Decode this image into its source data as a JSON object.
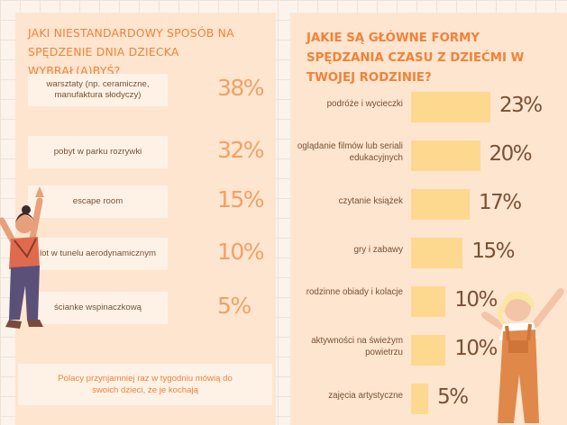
{
  "left": {
    "title": "JAKI NIESTANDARDOWY SPOSÓB NA SPĘDZENIE DNIA DZIECKA WYBRAŁ(A)BYŚ?",
    "note": "Polacy przynjamniej raz w tygodniu mówią do swoich dzieci, że je kochają"
  },
  "right": {
    "title": "JAKIE SĄ GŁÓWNE FORMY SPĘDZANIA CZASU Z DZIEĆMI W TWOJEJ RODZINIE?"
  },
  "colors": {
    "accent": "#f0823a",
    "bar": "#fdd88f",
    "panel": "#fde5cf",
    "text": "#7a5034",
    "pct_light": "#f3a064"
  },
  "chart_data": [
    {
      "type": "table",
      "title": "JAKI NIESTANDARDOWY SPOSÓB NA SPĘDZENIE DNIA DZIECKA WYBRAŁ(A)BYŚ?",
      "categories": [
        "warsztaty (np. ceramiczne, manufaktura słodyczy)",
        "pobyt w parku rozrywki",
        "escape room",
        "lot w tunelu aerodynamicznym",
        "ścianke wspinaczkową"
      ],
      "values": [
        38,
        32,
        15,
        10,
        5
      ],
      "labels": [
        "38%",
        "32%",
        "15%",
        "10%",
        "5%"
      ]
    },
    {
      "type": "bar",
      "orientation": "horizontal",
      "title": "JAKIE SĄ GŁÓWNE FORMY SPĘDZANIA CZASU Z DZIEĆMI W TWOJEJ RODZINIE?",
      "categories": [
        "podróże i wycieczki",
        "oglądanie filmów lub seriali edukacyjnych",
        "czytanie książek",
        "gry i zabawy",
        "rodzinne obiady i kolacje",
        "aktywności na świeżym powietrzu",
        "zajęcia artystyczne"
      ],
      "values": [
        23,
        20,
        17,
        15,
        10,
        10,
        5
      ],
      "labels": [
        "23%",
        "20%",
        "17%",
        "15%",
        "10%",
        "10%",
        "5%"
      ],
      "xlim": [
        0,
        23
      ]
    }
  ]
}
